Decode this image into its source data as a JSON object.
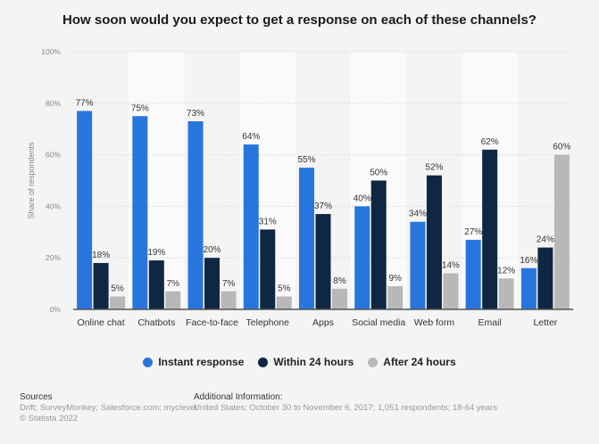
{
  "chart_data": {
    "type": "bar",
    "title": "How soon would you expect to get a response on each of these channels?",
    "ylabel": "Share of respondents",
    "ylim": [
      0,
      100
    ],
    "yticks": [
      "0%",
      "20%",
      "40%",
      "60%",
      "80%",
      "100%"
    ],
    "grid": true,
    "legend_placement": "bottom",
    "categories": [
      "Online chat",
      "Chatbots",
      "Face-to-face",
      "Telephone",
      "Apps",
      "Social media",
      "Web form",
      "Email",
      "Letter"
    ],
    "series": [
      {
        "name": "Instant response",
        "color": "#2876dd",
        "values": [
          77,
          75,
          73,
          64,
          55,
          40,
          34,
          27,
          16
        ]
      },
      {
        "name": "Within 24 hours",
        "color": "#0f2742",
        "values": [
          18,
          19,
          20,
          31,
          37,
          50,
          52,
          62,
          24
        ]
      },
      {
        "name": "After 24 hours",
        "color": "#b8b8b8",
        "values": [
          5,
          7,
          7,
          5,
          8,
          9,
          14,
          12,
          60
        ]
      }
    ]
  },
  "footer": {
    "sources_label": "Sources",
    "sources": "Drift; SurveyMonkey; Salesforce.com; myclever",
    "copyright": "© Statista 2022",
    "additional_label": "Additional Information:",
    "additional": "United States; October 30 to November 6, 2017; 1,051 respondents; 18-64 years"
  }
}
